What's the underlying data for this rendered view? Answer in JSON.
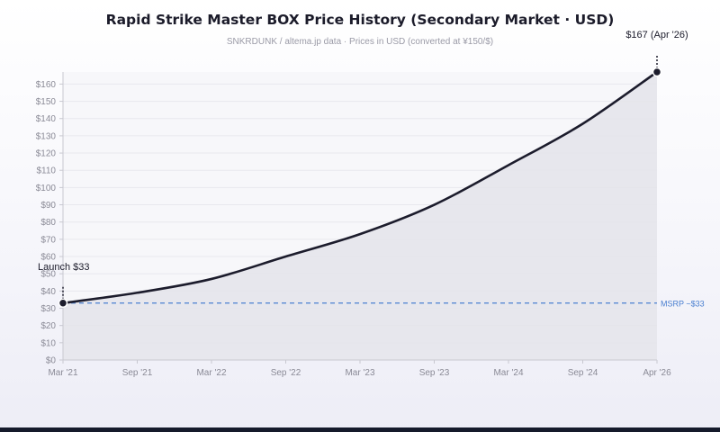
{
  "chart_data": {
    "type": "area",
    "title": "Rapid Strike Master BOX Price History (Secondary Market · USD)",
    "subtitle": "SNKRDUNK / altema.jp data · Prices in USD (converted at ¥150/$)",
    "x": [
      "Mar '21",
      "Sep '21",
      "Mar '22",
      "Sep '22",
      "Mar '23",
      "Sep '23",
      "Mar '24",
      "Sep '24",
      "Apr '26"
    ],
    "series": [
      {
        "values": [
          33,
          39,
          47,
          60,
          73,
          90,
          113,
          137,
          167
        ]
      }
    ],
    "yticks": [
      "$0",
      "$10",
      "$20",
      "$30",
      "$40",
      "$50",
      "$60",
      "$70",
      "$80",
      "$90",
      "$100",
      "$110",
      "$120",
      "$130",
      "$140",
      "$150",
      "$160"
    ],
    "ylim": [
      0,
      167
    ],
    "grid": true,
    "reference_line": {
      "label": "MSRP ~$33",
      "value": 33,
      "color": "#4a7fd0"
    },
    "annotations": [
      {
        "label": "Launch $33",
        "point_index": 0
      },
      {
        "label": "$167 (Apr '26)",
        "point_index": 8
      }
    ],
    "line_color": "#1c1c2c",
    "fill_color": "#e4e4ea"
  }
}
